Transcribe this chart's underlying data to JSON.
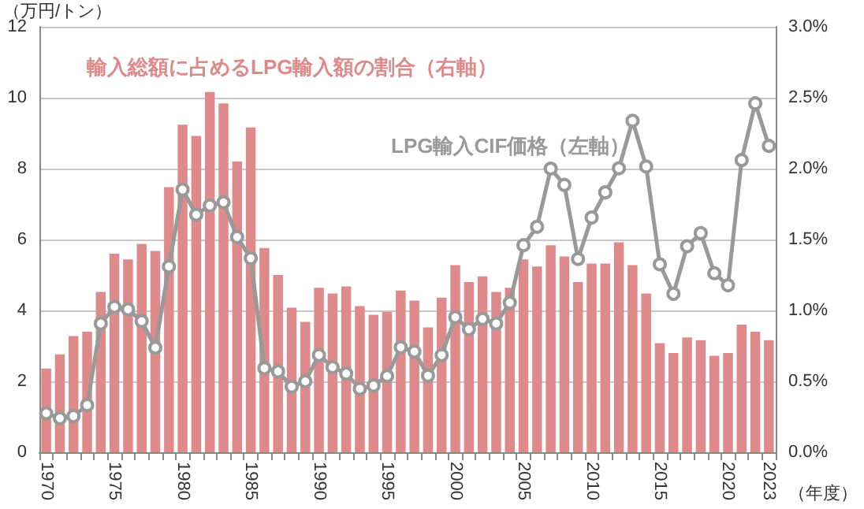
{
  "chart_data": {
    "type": "bar",
    "ylabel": "（万円/トン）",
    "xlabel": "（年度）",
    "categories": [
      "1970",
      null,
      null,
      null,
      null,
      "1975",
      null,
      null,
      null,
      null,
      "1980",
      null,
      null,
      null,
      null,
      "1985",
      null,
      null,
      null,
      null,
      "1990",
      null,
      null,
      null,
      null,
      "1995",
      null,
      null,
      null,
      null,
      "2000",
      null,
      null,
      null,
      null,
      "2005",
      null,
      null,
      null,
      null,
      "2010",
      null,
      null,
      null,
      null,
      "2015",
      null,
      null,
      null,
      null,
      "2020",
      null,
      null,
      "2023"
    ],
    "series": [
      {
        "name": "輸入総額に占めるLPG輸入額の割合（右軸）",
        "axis": "y2",
        "color": "#de8a8a",
        "values": [
          0.59,
          0.69,
          0.82,
          0.85,
          1.13,
          1.4,
          1.36,
          1.47,
          1.42,
          1.87,
          2.31,
          2.23,
          2.54,
          2.46,
          2.05,
          2.29,
          1.44,
          1.25,
          1.02,
          0.92,
          1.16,
          1.12,
          1.17,
          1.03,
          0.97,
          0.99,
          1.14,
          1.07,
          0.88,
          1.09,
          1.32,
          1.2,
          1.24,
          1.13,
          1.16,
          1.36,
          1.31,
          1.46,
          1.38,
          1.2,
          1.33,
          1.33,
          1.48,
          1.32,
          1.12,
          0.77,
          0.7,
          0.81,
          0.79,
          0.68,
          0.7,
          0.9,
          0.85,
          0.79
        ]
      },
      {
        "name": "LPG輸入CIF価格（左軸）",
        "type": "line",
        "color": "#999999",
        "marker": "circle",
        "line_style": "solid",
        "values": [
          1.1,
          0.96,
          1.02,
          1.33,
          3.63,
          4.1,
          4.03,
          3.7,
          2.95,
          5.24,
          7.41,
          6.7,
          6.96,
          7.05,
          6.07,
          5.47,
          2.37,
          2.28,
          1.85,
          2.0,
          2.74,
          2.4,
          2.22,
          1.79,
          1.88,
          2.15,
          2.96,
          2.84,
          2.16,
          2.74,
          3.81,
          3.47,
          3.76,
          3.63,
          4.22,
          5.84,
          6.36,
          8.0,
          7.54,
          5.45,
          6.62,
          7.33,
          8.01,
          9.35,
          8.06,
          5.3,
          4.47,
          5.81,
          6.18,
          5.05,
          4.71,
          8.24,
          9.84,
          8.64
        ]
      }
    ],
    "ylim": [
      0,
      12
    ],
    "yticks": [
      0,
      2,
      4,
      6,
      8,
      10,
      12
    ],
    "y2lim": [
      0,
      3
    ],
    "y2ticks": [
      {
        "value": 0,
        "label": "0.0%"
      },
      {
        "value": 0.5,
        "label": "0.5%"
      },
      {
        "value": 1,
        "label": "1.0%"
      },
      {
        "value": 1.5,
        "label": "1.5%"
      },
      {
        "value": 2,
        "label": "2.0%"
      },
      {
        "value": 2.5,
        "label": "2.5%"
      },
      {
        "value": 3,
        "label": "3.0%"
      }
    ],
    "grid": "y",
    "legend": false
  }
}
